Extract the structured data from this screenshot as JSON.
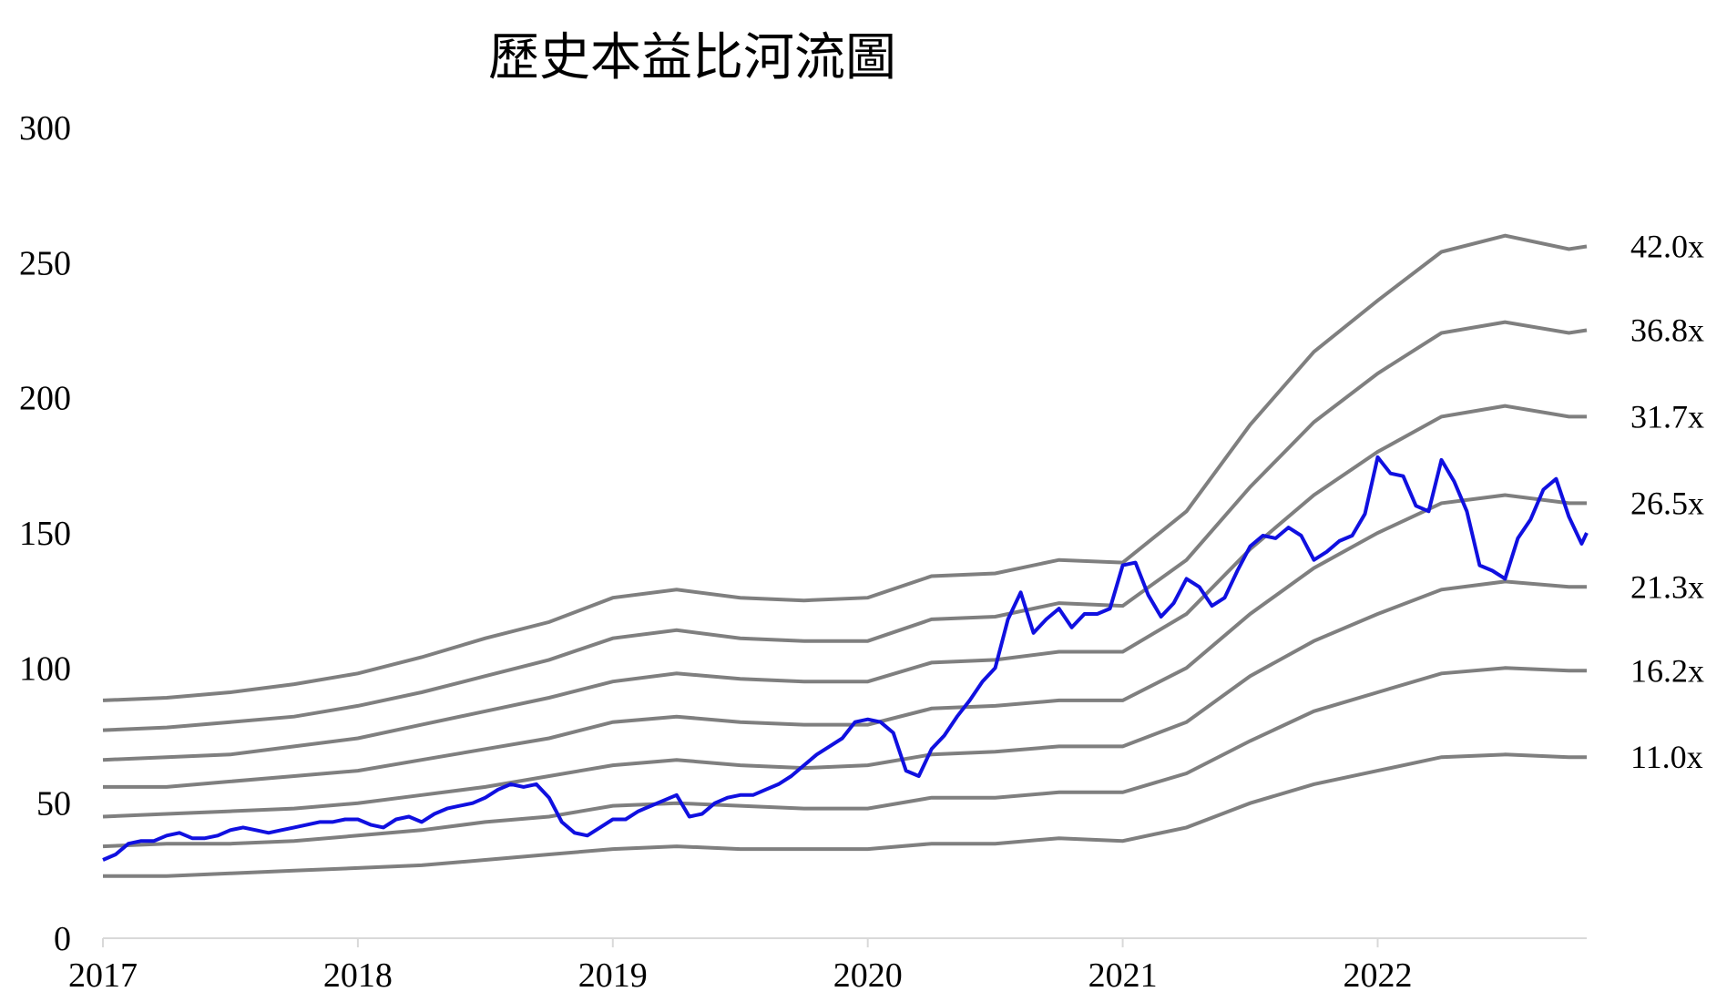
{
  "chart_data": {
    "type": "line",
    "title": "歷史本益比河流圖",
    "xlabel": "",
    "ylabel": "",
    "xlim": [
      2017.0,
      2022.82
    ],
    "ylim": [
      0,
      300
    ],
    "y_ticks": [
      0,
      50,
      100,
      150,
      200,
      250,
      300
    ],
    "x_ticks": [
      2017,
      2018,
      2019,
      2020,
      2021,
      2022
    ],
    "x_tick_labels": [
      "2017",
      "2018",
      "2019",
      "2020",
      "2021",
      "2022"
    ],
    "grid": false,
    "legend": "right-edge labels",
    "colors": {
      "price": "#1010e0",
      "band": "#7f7f7f",
      "axis": "#d9d9d9"
    },
    "bands_x": [
      2017.0,
      2017.25,
      2017.5,
      2017.75,
      2018.0,
      2018.25,
      2018.5,
      2018.75,
      2019.0,
      2019.25,
      2019.5,
      2019.75,
      2020.0,
      2020.25,
      2020.5,
      2020.75,
      2021.0,
      2021.25,
      2021.5,
      2021.75,
      2022.0,
      2022.25,
      2022.5,
      2022.75,
      2022.82
    ],
    "bands": [
      {
        "label": "42.0x",
        "values": [
          88,
          89,
          91,
          94,
          98,
          104,
          111,
          117,
          126,
          129,
          126,
          125,
          126,
          134,
          135,
          140,
          139,
          158,
          190,
          217,
          236,
          254,
          260,
          255,
          256
        ]
      },
      {
        "label": "36.8x",
        "values": [
          77,
          78,
          80,
          82,
          86,
          91,
          97,
          103,
          111,
          114,
          111,
          110,
          110,
          118,
          119,
          124,
          123,
          140,
          167,
          191,
          209,
          224,
          228,
          224,
          225
        ]
      },
      {
        "label": "31.7x",
        "values": [
          66,
          67,
          68,
          71,
          74,
          79,
          84,
          89,
          95,
          98,
          96,
          95,
          95,
          102,
          103,
          106,
          106,
          120,
          144,
          164,
          180,
          193,
          197,
          193,
          193
        ]
      },
      {
        "label": "26.5x",
        "values": [
          56,
          56,
          58,
          60,
          62,
          66,
          70,
          74,
          80,
          82,
          80,
          79,
          79,
          85,
          86,
          88,
          88,
          100,
          120,
          137,
          150,
          161,
          164,
          161,
          161
        ]
      },
      {
        "label": "21.3x",
        "values": [
          45,
          46,
          47,
          48,
          50,
          53,
          56,
          60,
          64,
          66,
          64,
          63,
          64,
          68,
          69,
          71,
          71,
          80,
          97,
          110,
          120,
          129,
          132,
          130,
          130
        ]
      },
      {
        "label": "16.2x",
        "values": [
          34,
          35,
          35,
          36,
          38,
          40,
          43,
          45,
          49,
          50,
          49,
          48,
          48,
          52,
          52,
          54,
          54,
          61,
          73,
          84,
          91,
          98,
          100,
          99,
          99
        ]
      },
      {
        "label": "11.0x",
        "values": [
          23,
          23,
          24,
          25,
          26,
          27,
          29,
          31,
          33,
          34,
          33,
          33,
          33,
          35,
          35,
          37,
          36,
          41,
          50,
          57,
          62,
          67,
          68,
          67,
          67
        ]
      }
    ],
    "price": {
      "x": [
        2017.0,
        2017.05,
        2017.1,
        2017.15,
        2017.2,
        2017.25,
        2017.3,
        2017.35,
        2017.4,
        2017.45,
        2017.5,
        2017.55,
        2017.6,
        2017.65,
        2017.7,
        2017.75,
        2017.8,
        2017.85,
        2017.9,
        2017.95,
        2018.0,
        2018.05,
        2018.1,
        2018.15,
        2018.2,
        2018.25,
        2018.3,
        2018.35,
        2018.4,
        2018.45,
        2018.5,
        2018.55,
        2018.6,
        2018.65,
        2018.7,
        2018.75,
        2018.8,
        2018.85,
        2018.9,
        2018.95,
        2019.0,
        2019.05,
        2019.1,
        2019.15,
        2019.2,
        2019.25,
        2019.3,
        2019.35,
        2019.4,
        2019.45,
        2019.5,
        2019.55,
        2019.6,
        2019.65,
        2019.7,
        2019.75,
        2019.8,
        2019.85,
        2019.9,
        2019.95,
        2020.0,
        2020.05,
        2020.1,
        2020.15,
        2020.2,
        2020.25,
        2020.3,
        2020.35,
        2020.4,
        2020.45,
        2020.5,
        2020.55,
        2020.6,
        2020.65,
        2020.7,
        2020.75,
        2020.8,
        2020.85,
        2020.9,
        2020.95,
        2021.0,
        2021.05,
        2021.1,
        2021.15,
        2021.2,
        2021.25,
        2021.3,
        2021.35,
        2021.4,
        2021.45,
        2021.5,
        2021.55,
        2021.6,
        2021.65,
        2021.7,
        2021.75,
        2021.8,
        2021.85,
        2021.9,
        2021.95,
        2022.0,
        2022.05,
        2022.1,
        2022.15,
        2022.2,
        2022.25,
        2022.3,
        2022.35,
        2022.4,
        2022.45,
        2022.5,
        2022.55,
        2022.6,
        2022.65,
        2022.7,
        2022.75,
        2022.8,
        2022.82
      ],
      "y": [
        29,
        31,
        35,
        36,
        36,
        38,
        39,
        37,
        37,
        38,
        40,
        41,
        40,
        39,
        40,
        41,
        42,
        43,
        43,
        44,
        44,
        42,
        41,
        44,
        45,
        43,
        46,
        48,
        49,
        50,
        52,
        55,
        57,
        56,
        57,
        52,
        43,
        39,
        38,
        41,
        44,
        44,
        47,
        49,
        51,
        53,
        45,
        46,
        50,
        52,
        53,
        53,
        55,
        57,
        60,
        64,
        68,
        71,
        74,
        80,
        81,
        80,
        76,
        62,
        60,
        70,
        75,
        82,
        88,
        95,
        100,
        118,
        128,
        113,
        118,
        122,
        115,
        120,
        120,
        122,
        138,
        139,
        127,
        119,
        124,
        133,
        130,
        123,
        126,
        136,
        145,
        149,
        148,
        152,
        149,
        140,
        143,
        147,
        149,
        157,
        178,
        172,
        171,
        160,
        158,
        177,
        169,
        158,
        138,
        136,
        133,
        148,
        155,
        166,
        170,
        156,
        146,
        150
      ]
    }
  }
}
